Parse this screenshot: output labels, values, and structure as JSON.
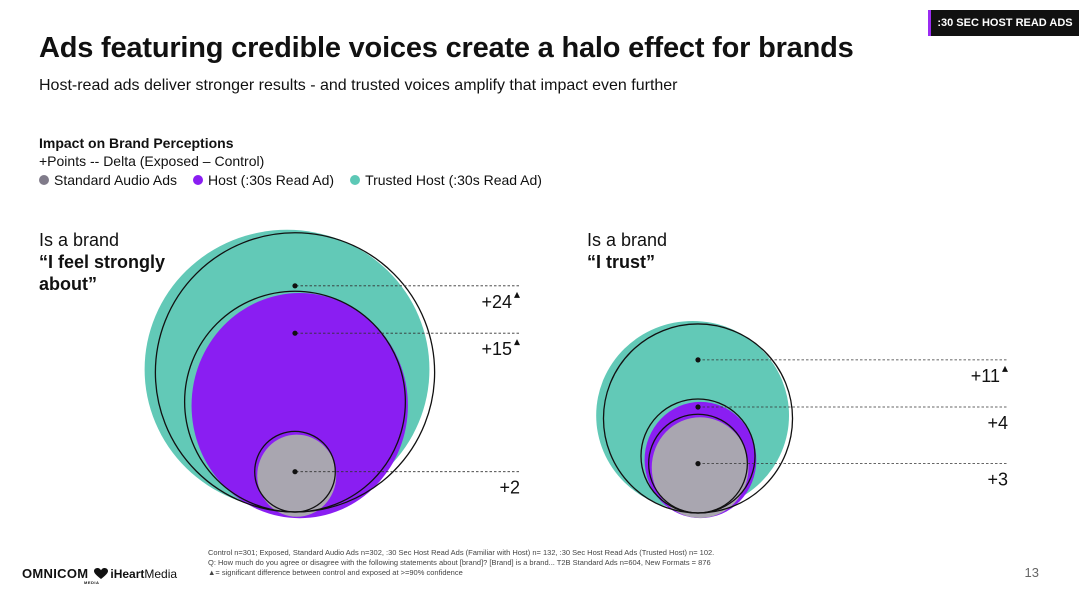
{
  "badge": ":30 SEC HOST READ ADS",
  "header": {
    "title": "Ads featuring credible voices create a halo effect for brands",
    "subtitle": "Host-read ads deliver stronger results - and trusted voices amplify that impact even further"
  },
  "legend": {
    "title": "Impact on Brand Perceptions",
    "subtitle": "+Points -- Delta (Exposed – Control)",
    "items": [
      {
        "label": "Standard Audio Ads",
        "color": "#807b8a"
      },
      {
        "label": "Host (:30s Read Ad)",
        "color": "#8a1ef2"
      },
      {
        "label": "Trusted Host (:30s Read Ad)",
        "color": "#5cc8b6"
      }
    ]
  },
  "colors": {
    "trusted": "#62c9b7",
    "host": "#8a1ef2",
    "standard": "#a9a6b0",
    "outline": "#111111"
  },
  "chart_data": [
    {
      "type": "bubble",
      "title_line1": "Is a brand",
      "title_line2": "“I feel strongly about”",
      "series": [
        {
          "name": "Standard Audio Ads",
          "value": 2,
          "label": "+2",
          "significant": false
        },
        {
          "name": "Host (:30s Read Ad)",
          "value": 15,
          "label": "+15",
          "significant": true
        },
        {
          "name": "Trusted Host (:30s Read Ad)",
          "value": 24,
          "label": "+24",
          "significant": true
        }
      ]
    },
    {
      "type": "bubble",
      "title_line1": "Is a brand",
      "title_line2": "“I trust”",
      "series": [
        {
          "name": "Standard Audio Ads",
          "value": 3,
          "label": "+3",
          "significant": false
        },
        {
          "name": "Host (:30s Read Ad)",
          "value": 4,
          "label": "+4",
          "significant": false
        },
        {
          "name": "Trusted Host (:30s Read Ad)",
          "value": 11,
          "label": "+11",
          "significant": true
        }
      ]
    }
  ],
  "footnote": {
    "line1": "Control n=301; Exposed, Standard Audio Ads n=302, :30 Sec Host Read Ads (Familiar with Host) n= 132, :30 Sec Host Read Ads (Trusted Host) n= 102.",
    "line2": "Q: How much do you agree or disagree with the following statements about [brand]? [Brand] is a brand... T2B Standard Ads n=604, New Formats = 876",
    "line3": "▲= significant difference between control and exposed at >=90% confidence"
  },
  "logos": {
    "omnicom": "OMNICOM",
    "omnicom_sub": "MEDIA",
    "iheart_bold": "iHeart",
    "iheart_rest": "Media"
  },
  "page_number": "13"
}
